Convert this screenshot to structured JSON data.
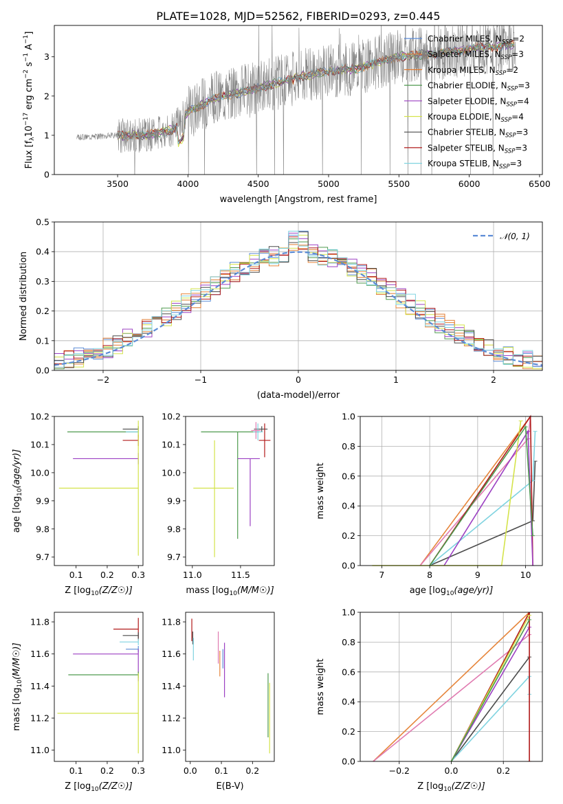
{
  "colors": {
    "c_miles": "#5b8bd6",
    "s_miles": "#e6853a",
    "k_miles": "#e07a2f",
    "c_elodie": "#4e9a4e",
    "s_elodie": "#9b3fc2",
    "k_elodie": "#d4e34a",
    "c_stelib": "#4a4a4a",
    "s_stelib": "#b01818",
    "k_stelib": "#7fd3e0",
    "pink": "#e07ab0",
    "data": "#808080",
    "normal": "#5b8bd6"
  },
  "chart_data": [
    {
      "id": "spectrum",
      "type": "line",
      "title": "PLATE=1028, MJD=52562, FIBERID=0293, z=0.445",
      "xlabel": "wavelength [Angstrom, rest frame]",
      "ylabel": "Flux [f_λ10^-17 erg cm^-2 s^-1 A^-1]",
      "xlim": [
        3050,
        6520
      ],
      "ylim": [
        0,
        3.8
      ],
      "xticks": [
        "3500",
        "4000",
        "4500",
        "5000",
        "5500",
        "6000",
        "6500"
      ],
      "yticks": [
        "0",
        "1",
        "2",
        "3"
      ],
      "grid": false,
      "legend_position": "top-right",
      "legend": [
        {
          "name": "Chabrier MILES, N",
          "sub": "SSP",
          "tail": "=2",
          "color": "c_miles"
        },
        {
          "name": "Salpeter MILES, N",
          "sub": "SSP",
          "tail": "=3",
          "color": "s_miles"
        },
        {
          "name": "Kroupa MILES, N",
          "sub": "SSP",
          "tail": "=2",
          "color": "k_miles"
        },
        {
          "name": "Chabrier ELODIE, N",
          "sub": "SSP",
          "tail": "=3",
          "color": "c_elodie"
        },
        {
          "name": "Salpeter ELODIE, N",
          "sub": "SSP",
          "tail": "=4",
          "color": "s_elodie"
        },
        {
          "name": "Kroupa ELODIE, N",
          "sub": "SSP",
          "tail": "=4",
          "color": "k_elodie"
        },
        {
          "name": "Chabrier STELIB, N",
          "sub": "SSP",
          "tail": "=3",
          "color": "c_stelib"
        },
        {
          "name": "Salpeter STELIB, N",
          "sub": "SSP",
          "tail": "=3",
          "color": "s_stelib"
        },
        {
          "name": "Kroupa STELIB, N",
          "sub": "SSP",
          "tail": "=3",
          "color": "k_stelib"
        }
      ],
      "continuum": [
        [
          3210,
          0.95
        ],
        [
          3500,
          1.0
        ],
        [
          3700,
          1.0
        ],
        [
          3900,
          1.15
        ],
        [
          4000,
          1.6
        ],
        [
          4200,
          1.95
        ],
        [
          4500,
          2.2
        ],
        [
          4800,
          2.5
        ],
        [
          5000,
          2.65
        ],
        [
          5200,
          2.7
        ],
        [
          5500,
          3.0
        ],
        [
          5800,
          3.1
        ],
        [
          6000,
          3.2
        ],
        [
          6300,
          3.3
        ]
      ]
    },
    {
      "id": "residuals",
      "type": "histogram",
      "xlabel": "(data-model)/error",
      "ylabel": "Normed distribution",
      "xlim": [
        -2.5,
        2.5
      ],
      "ylim": [
        0,
        0.5
      ],
      "xticks": [
        "−2",
        "−1",
        "0",
        "1",
        "2"
      ],
      "yticks": [
        "0.0",
        "0.1",
        "0.2",
        "0.3",
        "0.4",
        "0.5"
      ],
      "grid": true,
      "legend_position": "top-right",
      "legend": [
        {
          "name": "𝒩(0, 1)",
          "color": "normal"
        }
      ],
      "bins": {
        "start": -2.5,
        "width": 0.1,
        "count": 50
      },
      "series": [
        {
          "name": "Chabrier MILES",
          "color": "c_miles",
          "seed": 1
        },
        {
          "name": "Salpeter MILES",
          "color": "s_miles",
          "seed": 2
        },
        {
          "name": "Kroupa MILES",
          "color": "k_miles",
          "seed": 3
        },
        {
          "name": "Chabrier ELODIE",
          "color": "c_elodie",
          "seed": 4
        },
        {
          "name": "Salpeter ELODIE",
          "color": "s_elodie",
          "seed": 5
        },
        {
          "name": "Kroupa ELODIE",
          "color": "k_elodie",
          "seed": 6
        },
        {
          "name": "Chabrier STELIB",
          "color": "c_stelib",
          "seed": 7
        },
        {
          "name": "Salpeter STELIB",
          "color": "s_stelib",
          "seed": 8
        },
        {
          "name": "Kroupa STELIB",
          "color": "k_stelib",
          "seed": 9
        }
      ]
    },
    {
      "id": "z-age",
      "type": "errorbar",
      "xlabel": "Z [log10(Z/Z☉)]",
      "ylabel": "age [log10(age/yr)]",
      "xlim": [
        0.03,
        0.315
      ],
      "ylim": [
        9.67,
        10.2
      ],
      "xticks": [
        "0.1",
        "0.2",
        "0.3"
      ],
      "xtick_values": [
        0.1,
        0.2,
        0.3
      ],
      "yticks": [
        "9.7",
        "9.8",
        "9.9",
        "10.0",
        "10.1",
        "10.2"
      ],
      "ytick_values": [
        9.7,
        9.8,
        9.9,
        10.0,
        10.1,
        10.2
      ],
      "grid": false,
      "points": [
        {
          "x": 0.3,
          "y": 10.145,
          "xerr": [
            0.228,
            0.0
          ],
          "yerr": [
            0.02,
            0.02
          ],
          "color": "c_elodie"
        },
        {
          "x": 0.3,
          "y": 10.155,
          "xerr": [
            0.05,
            0.0
          ],
          "yerr": [
            0.01,
            0.01
          ],
          "color": "c_stelib"
        },
        {
          "x": 0.3,
          "y": 10.115,
          "xerr": [
            0.05,
            0.0
          ],
          "yerr": [
            0.02,
            0.02
          ],
          "color": "s_stelib"
        },
        {
          "x": 0.3,
          "y": 10.145,
          "xerr": [
            0.04,
            0.0
          ],
          "yerr": [
            0.01,
            0.01
          ],
          "color": "k_stelib"
        },
        {
          "x": 0.3,
          "y": 10.05,
          "xerr": [
            0.21,
            0.0
          ],
          "yerr": [
            0.02,
            0.02
          ],
          "color": "s_elodie"
        },
        {
          "x": 0.3,
          "y": 9.945,
          "xerr": [
            0.255,
            0.0
          ],
          "yerr": [
            0.24,
            0.24
          ],
          "color": "k_elodie"
        }
      ]
    },
    {
      "id": "mass-age",
      "type": "errorbar",
      "xlabel": "mass [log10(M/M☉)]",
      "ylabel": "",
      "xlim": [
        10.93,
        11.85
      ],
      "ylim": [
        9.67,
        10.2
      ],
      "xticks": [
        "11.0",
        "11.5"
      ],
      "xtick_values": [
        11.0,
        11.5
      ],
      "yticks": [
        "9.7",
        "9.8",
        "9.9",
        "10.0",
        "10.1",
        "10.2"
      ],
      "ytick_values": [
        9.7,
        9.8,
        9.9,
        10.0,
        10.1,
        10.2
      ],
      "grid": false,
      "points": [
        {
          "x": 11.47,
          "y": 10.145,
          "xerr": [
            0.38,
            0.22
          ],
          "yerr": [
            0.38,
            0.0
          ],
          "color": "c_elodie"
        },
        {
          "x": 11.6,
          "y": 10.05,
          "xerr": [
            0.13,
            0.1
          ],
          "yerr": [
            0.24,
            0.0
          ],
          "color": "s_elodie"
        },
        {
          "x": 11.23,
          "y": 9.945,
          "xerr": [
            0.22,
            0.2
          ],
          "yerr": [
            0.245,
            0.17
          ],
          "color": "k_elodie"
        },
        {
          "x": 11.72,
          "y": 10.155,
          "xerr": [
            0.08,
            0.06
          ],
          "yerr": [
            0.01,
            0.01
          ],
          "color": "c_stelib"
        },
        {
          "x": 11.75,
          "y": 10.115,
          "xerr": [
            0.06,
            0.06
          ],
          "yerr": [
            0.06,
            0.06
          ],
          "color": "s_stelib"
        },
        {
          "x": 11.68,
          "y": 10.145,
          "xerr": [
            0.05,
            0.05
          ],
          "yerr": [
            0.03,
            0.03
          ],
          "color": "k_stelib"
        },
        {
          "x": 11.66,
          "y": 10.15,
          "xerr": [
            0.05,
            0.05
          ],
          "yerr": [
            0.03,
            0.03
          ],
          "color": "pink"
        }
      ]
    },
    {
      "id": "age-weight",
      "type": "line",
      "xlabel": "age [log10(age/yr)]",
      "ylabel": "mass weight",
      "xlim": [
        6.55,
        10.35
      ],
      "ylim": [
        0,
        1.0
      ],
      "xticks": [
        "7",
        "8",
        "9",
        "10"
      ],
      "xtick_values": [
        7,
        8,
        9,
        10
      ],
      "yticks": [
        "0.0",
        "0.2",
        "0.4",
        "0.6",
        "0.8",
        "1.0"
      ],
      "ytick_values": [
        0,
        0.2,
        0.4,
        0.6,
        0.8,
        1.0
      ],
      "grid": true,
      "series": [
        {
          "color": "s_miles",
          "points": [
            [
              7.8,
              0.0
            ],
            [
              10.1,
              1.0
            ]
          ]
        },
        {
          "color": "pink",
          "points": [
            [
              7.8,
              0.0
            ],
            [
              10.05,
              0.85
            ],
            [
              10.1,
              1.0
            ]
          ]
        },
        {
          "color": "c_stelib",
          "points": [
            [
              8.0,
              0.0
            ],
            [
              10.15,
              0.3
            ],
            [
              10.2,
              0.7
            ]
          ]
        },
        {
          "color": "k_stelib",
          "points": [
            [
              8.0,
              0.0
            ],
            [
              10.15,
              0.57
            ],
            [
              10.2,
              0.9
            ]
          ]
        },
        {
          "color": "s_stelib",
          "points": [
            [
              8.0,
              0.0
            ],
            [
              10.1,
              1.0
            ],
            [
              10.15,
              0.0
            ]
          ]
        },
        {
          "color": "s_elodie",
          "points": [
            [
              8.3,
              0.0
            ],
            [
              10.05,
              0.9
            ],
            [
              10.15,
              0.0
            ]
          ]
        },
        {
          "color": "k_elodie",
          "points": [
            [
              6.8,
              0.0
            ],
            [
              9.5,
              0.0
            ],
            [
              9.9,
              0.97
            ]
          ]
        },
        {
          "color": "c_elodie",
          "points": [
            [
              8.0,
              0.0
            ],
            [
              10.0,
              0.93
            ],
            [
              10.15,
              0.2
            ]
          ]
        }
      ]
    },
    {
      "id": "z-mass",
      "type": "errorbar",
      "xlabel": "Z [log10(Z/Z☉)]",
      "ylabel": "mass [log10(M/M☉)]",
      "xlim": [
        0.03,
        0.315
      ],
      "ylim": [
        10.93,
        11.86
      ],
      "xticks": [
        "0.1",
        "0.2",
        "0.3"
      ],
      "xtick_values": [
        0.1,
        0.2,
        0.3
      ],
      "yticks": [
        "11.0",
        "11.2",
        "11.4",
        "11.6",
        "11.8"
      ],
      "ytick_values": [
        11.0,
        11.2,
        11.4,
        11.6,
        11.8
      ],
      "grid": false,
      "points": [
        {
          "x": 0.3,
          "y": 11.755,
          "xerr": [
            0.08,
            0.0
          ],
          "yerr": [
            0.07,
            0.07
          ],
          "color": "s_stelib"
        },
        {
          "x": 0.3,
          "y": 11.715,
          "xerr": [
            0.05,
            0.0
          ],
          "yerr": [
            0.02,
            0.02
          ],
          "color": "c_stelib"
        },
        {
          "x": 0.3,
          "y": 11.675,
          "xerr": [
            0.06,
            0.0
          ],
          "yerr": [
            0.02,
            0.02
          ],
          "color": "k_stelib"
        },
        {
          "x": 0.3,
          "y": 11.63,
          "xerr": [
            0.04,
            0.0
          ],
          "yerr": [
            0.02,
            0.02
          ],
          "color": "c_miles"
        },
        {
          "x": 0.3,
          "y": 11.6,
          "xerr": [
            0.21,
            0.0
          ],
          "yerr": [
            0.17,
            0.03
          ],
          "color": "s_elodie"
        },
        {
          "x": 0.3,
          "y": 11.47,
          "xerr": [
            0.225,
            0.0
          ],
          "yerr": [
            0.02,
            0.02
          ],
          "color": "c_elodie"
        },
        {
          "x": 0.3,
          "y": 11.23,
          "xerr": [
            0.26,
            0.0
          ],
          "yerr": [
            0.25,
            0.25
          ],
          "color": "k_elodie"
        }
      ]
    },
    {
      "id": "ebv-mass",
      "type": "errorbar",
      "xlabel": "E(B-V)",
      "ylabel": "",
      "xlim": [
        -0.015,
        0.27
      ],
      "ylim": [
        10.93,
        11.86
      ],
      "xticks": [
        "0.0",
        "0.1",
        "0.2"
      ],
      "xtick_values": [
        0.0,
        0.1,
        0.2
      ],
      "yticks": [
        "11.0",
        "11.2",
        "11.4",
        "11.6",
        "11.8"
      ],
      "ytick_values": [
        11.0,
        11.2,
        11.4,
        11.6,
        11.8
      ],
      "grid": false,
      "points": [
        {
          "x": 0.005,
          "y": 11.75,
          "xerr": [
            0,
            0
          ],
          "yerr": [
            0.07,
            0.07
          ],
          "color": "s_stelib"
        },
        {
          "x": 0.008,
          "y": 11.7,
          "xerr": [
            0,
            0
          ],
          "yerr": [
            0.04,
            0.04
          ],
          "color": "c_stelib"
        },
        {
          "x": 0.01,
          "y": 11.63,
          "xerr": [
            0,
            0
          ],
          "yerr": [
            0.07,
            0.07
          ],
          "color": "k_stelib"
        },
        {
          "x": 0.09,
          "y": 11.64,
          "xerr": [
            0,
            0
          ],
          "yerr": [
            0.1,
            0.1
          ],
          "color": "pink"
        },
        {
          "x": 0.095,
          "y": 11.54,
          "xerr": [
            0,
            0
          ],
          "yerr": [
            0.08,
            0.08
          ],
          "color": "s_miles"
        },
        {
          "x": 0.105,
          "y": 11.57,
          "xerr": [
            0,
            0
          ],
          "yerr": [
            0.06,
            0.06
          ],
          "color": "c_miles"
        },
        {
          "x": 0.11,
          "y": 11.5,
          "xerr": [
            0,
            0
          ],
          "yerr": [
            0.17,
            0.17
          ],
          "color": "s_elodie"
        },
        {
          "x": 0.25,
          "y": 11.28,
          "xerr": [
            0,
            0
          ],
          "yerr": [
            0.2,
            0.2
          ],
          "color": "c_elodie"
        },
        {
          "x": 0.255,
          "y": 11.2,
          "xerr": [
            0,
            0
          ],
          "yerr": [
            0.22,
            0.22
          ],
          "color": "k_elodie"
        }
      ]
    },
    {
      "id": "z-weight",
      "type": "line",
      "xlabel": "Z [log10(Z/Z☉)]",
      "ylabel": "mass weight",
      "xlim": [
        -0.35,
        0.35
      ],
      "ylim": [
        0,
        1.0
      ],
      "xticks": [
        "−0.2",
        "0.0",
        "0.2"
      ],
      "xtick_values": [
        -0.2,
        0.0,
        0.2
      ],
      "yticks": [
        "0.0",
        "0.2",
        "0.4",
        "0.6",
        "0.8",
        "1.0"
      ],
      "ytick_values": [
        0,
        0.2,
        0.4,
        0.6,
        0.8,
        1.0
      ],
      "grid": true,
      "series": [
        {
          "color": "s_miles",
          "points": [
            [
              -0.3,
              0.0
            ],
            [
              0.3,
              1.0
            ]
          ]
        },
        {
          "color": "pink",
          "points": [
            [
              -0.3,
              0.0
            ],
            [
              0.3,
              0.85
            ]
          ]
        },
        {
          "color": "c_stelib",
          "points": [
            [
              0.0,
              0.0
            ],
            [
              0.3,
              0.7
            ]
          ]
        },
        {
          "color": "k_stelib",
          "points": [
            [
              0.0,
              0.0
            ],
            [
              0.3,
              0.57
            ],
            [
              0.3,
              0.45
            ]
          ]
        },
        {
          "color": "s_elodie",
          "points": [
            [
              0.0,
              0.0
            ],
            [
              0.3,
              0.9
            ]
          ]
        },
        {
          "color": "s_stelib",
          "points": [
            [
              0.0,
              0.0
            ],
            [
              0.3,
              1.0
            ],
            [
              0.3,
              0.0
            ]
          ]
        },
        {
          "color": "k_elodie",
          "points": [
            [
              0.0,
              0.0
            ],
            [
              0.3,
              0.98
            ]
          ]
        },
        {
          "color": "c_elodie",
          "points": [
            [
              0.0,
              0.0
            ],
            [
              0.3,
              0.95
            ]
          ]
        }
      ]
    }
  ]
}
